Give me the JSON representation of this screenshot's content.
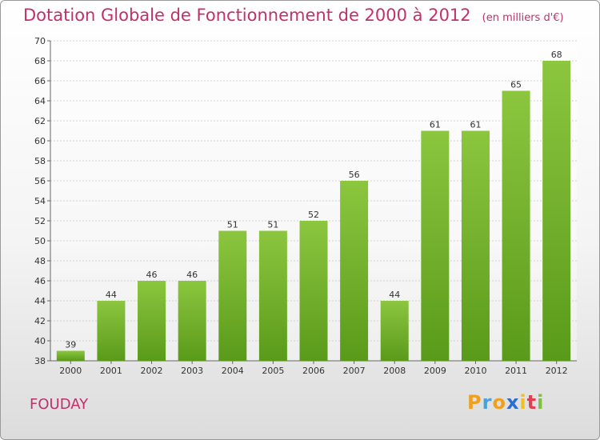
{
  "title": "Dotation Globale de Fonctionnement de 2000 à 2012",
  "subtitle": "(en milliers d'€)",
  "commune": "FOUDAY",
  "logo": {
    "letters": [
      "P",
      "r",
      "o",
      "x",
      "i",
      "t",
      "i"
    ],
    "colors": [
      "#f0a020",
      "#4aa0d8",
      "#f0a020",
      "#2a6fd0",
      "#f0c020",
      "#e04050",
      "#80c040"
    ]
  },
  "colors": {
    "bar": "#8cc63f",
    "bar_dark": "#5a9a1a",
    "title": "#c0306b"
  },
  "chart_data": {
    "type": "bar",
    "categories": [
      "2000",
      "2001",
      "2002",
      "2003",
      "2004",
      "2005",
      "2006",
      "2007",
      "2008",
      "2009",
      "2010",
      "2011",
      "2012"
    ],
    "values": [
      39,
      44,
      46,
      46,
      51,
      51,
      52,
      56,
      44,
      61,
      61,
      65,
      68
    ],
    "yticks": [
      "38",
      "40",
      "42",
      "44",
      "46",
      "48",
      "50",
      "52",
      "54",
      "56",
      "58",
      "60",
      "62",
      "64",
      "66",
      "68",
      "70"
    ],
    "ylim": [
      38,
      70
    ],
    "grid": true,
    "title": "Dotation Globale de Fonctionnement de 2000 à 2012",
    "xlabel": "",
    "ylabel": ""
  }
}
